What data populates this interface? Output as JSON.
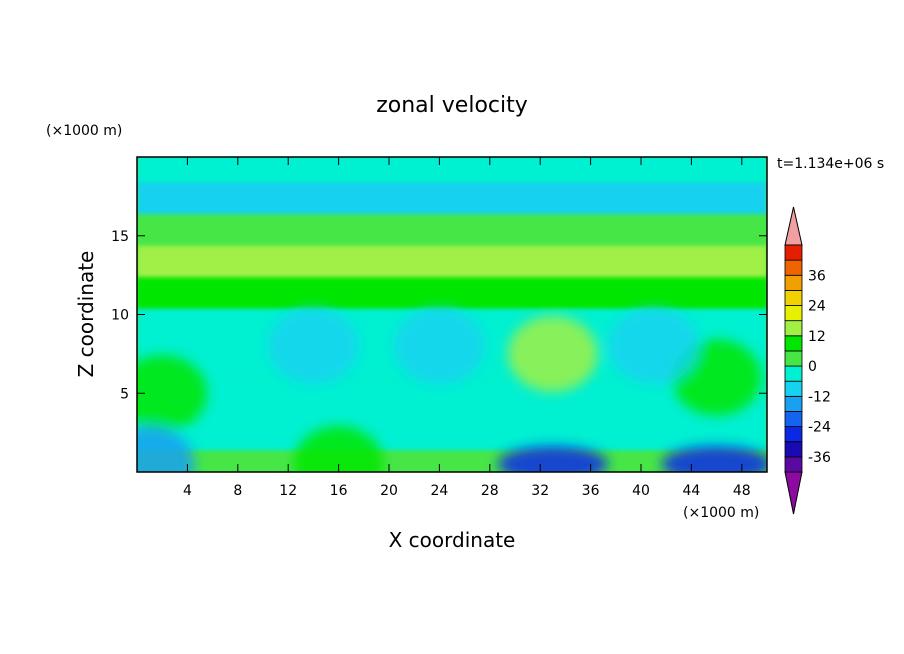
{
  "chart_data": {
    "type": "heatmap",
    "title": "zonal velocity",
    "xlabel": "X coordinate",
    "ylabel": "Z coordinate",
    "x_unit": "(×1000 m)",
    "y_unit": "(×1000 m)",
    "time_label": "t=1.134e+06 s",
    "xlim": [
      0,
      50
    ],
    "ylim": [
      0,
      20
    ],
    "x_ticks": [
      4,
      8,
      12,
      16,
      20,
      24,
      28,
      32,
      36,
      40,
      44,
      48
    ],
    "y_ticks": [
      5,
      10,
      15
    ],
    "colorbar": {
      "levels": [
        -42,
        -36,
        -30,
        -24,
        -18,
        -12,
        -6,
        0,
        6,
        12,
        18,
        24,
        30,
        36,
        42
      ],
      "labels": [
        36,
        24,
        12,
        0,
        -12,
        -24,
        -36
      ],
      "colors": [
        "#5a0aa0",
        "#1a0ab4",
        "#0a28e6",
        "#1464f0",
        "#1aa0f0",
        "#14d2f0",
        "#00f0d2",
        "#46e646",
        "#00e600",
        "#a0f046",
        "#e6f000",
        "#f0d200",
        "#f0a000",
        "#f06400",
        "#e61e00"
      ],
      "min_color": "#8c0aa0",
      "max_color": "#f0a0a0",
      "extend": "both"
    },
    "bands": [
      {
        "z_range": [
          0,
          1.5
        ],
        "value": 2
      },
      {
        "z_range": [
          1.5,
          6
        ],
        "value": -3
      },
      {
        "z_range": [
          6,
          10.5
        ],
        "value": -5
      },
      {
        "z_range": [
          10.5,
          12.5
        ],
        "value": 7
      },
      {
        "z_range": [
          12.5,
          14.5
        ],
        "value": 14
      },
      {
        "z_range": [
          14.5,
          16.5
        ],
        "value": 3
      },
      {
        "z_range": [
          16.5,
          18.5
        ],
        "value": -9
      },
      {
        "z_range": [
          18.5,
          20
        ],
        "value": -4
      }
    ],
    "features": [
      {
        "center": [
          33,
          7.5
        ],
        "value": 12
      },
      {
        "center": [
          46,
          6
        ],
        "value": 10
      },
      {
        "center": [
          2,
          5
        ],
        "value": 10
      },
      {
        "center": [
          14,
          8
        ],
        "value": -12
      },
      {
        "center": [
          24,
          8
        ],
        "value": -10
      },
      {
        "center": [
          41,
          8
        ],
        "value": -12
      },
      {
        "center": [
          33,
          0.5
        ],
        "value": -26
      },
      {
        "center": [
          46,
          0.5
        ],
        "value": -30
      },
      {
        "center": [
          1,
          0.5
        ],
        "value": -18
      },
      {
        "center": [
          16,
          0.5
        ],
        "value": 10
      }
    ]
  }
}
